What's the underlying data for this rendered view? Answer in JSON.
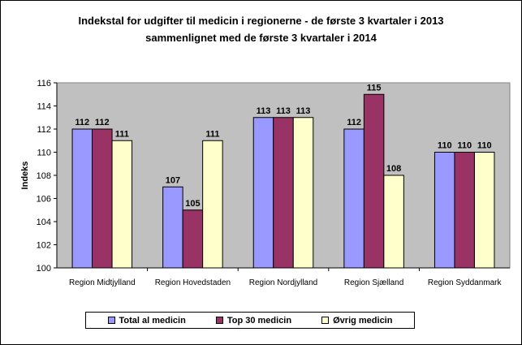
{
  "chart_data": {
    "type": "bar",
    "title_line1": "Indekstal for udgifter til medicin i regionerne - de første 3 kvartaler i 2013",
    "title_line2": "sammenlignet med de første 3 kvartaler i 2014",
    "xlabel": "",
    "ylabel": "Indeks",
    "ylim": [
      100,
      116
    ],
    "yticks": [
      100,
      102,
      104,
      106,
      108,
      110,
      112,
      114,
      116
    ],
    "categories": [
      "Region Midtjylland",
      "Region Hovedstaden",
      "Region Nordjylland",
      "Region Sjælland",
      "Region Syddanmark"
    ],
    "series": [
      {
        "name": "Total al medicin",
        "color": "#9999FF",
        "values": [
          112,
          107,
          113,
          112,
          110
        ]
      },
      {
        "name": "Top 30 medicin",
        "color": "#993366",
        "values": [
          112,
          105,
          113,
          115,
          110
        ]
      },
      {
        "name": "Øvrig medicin",
        "color": "#FFFFCC",
        "values": [
          111,
          111,
          113,
          108,
          110
        ]
      }
    ],
    "plot_background": "#C0C0C0",
    "legend_position": "bottom",
    "grid": false
  }
}
